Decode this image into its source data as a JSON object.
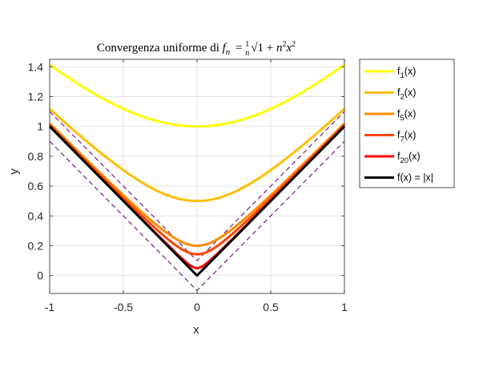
{
  "chart_data": {
    "type": "line",
    "title": "Convergenza uniforme di f_n = (1/n)√(1 + n²x²)",
    "title_parts": {
      "prefix": "Convergenza uniforme di ",
      "f": "f",
      "n_sub": "n",
      "equals": "=",
      "num": "1",
      "den": "n",
      "radicand_start": "1 + ",
      "n": "n",
      "exp2a": "2",
      "x": "x",
      "exp2b": "2"
    },
    "xlabel": "x",
    "ylabel": "y",
    "xlim": [
      -1,
      1
    ],
    "ylim": [
      -0.12,
      1.45
    ],
    "xticks": [
      -1,
      -0.5,
      0,
      0.5,
      1
    ],
    "xtick_labels": [
      "-1",
      "-0.5",
      "0",
      "0.5",
      "1"
    ],
    "yticks": [
      0,
      0.2,
      0.4,
      0.6,
      0.8,
      1,
      1.2,
      1.4
    ],
    "ytick_labels": [
      "0",
      "0.2",
      "0.4",
      "0.6",
      "0.8",
      "1",
      "1.2",
      "1.4"
    ],
    "grid": true,
    "legend_position": "outside-right-top",
    "series": [
      {
        "name": "f_1(x)",
        "label_main": "f",
        "label_sub": "1",
        "label_tail": "(x)",
        "n": 1,
        "color": "#ffff00"
      },
      {
        "name": "f_2(x)",
        "label_main": "f",
        "label_sub": "2",
        "label_tail": "(x)",
        "n": 2,
        "color": "#ffbf00"
      },
      {
        "name": "f_5(x)",
        "label_main": "f",
        "label_sub": "5",
        "label_tail": "(x)",
        "n": 5,
        "color": "#ff8c00"
      },
      {
        "name": "f_7(x)",
        "label_main": "f",
        "label_sub": "7",
        "label_tail": "(x)",
        "n": 7,
        "color": "#ff4500"
      },
      {
        "name": "f_20(x)",
        "label_main": "f",
        "label_sub": "20",
        "label_tail": "(x)",
        "n": 20,
        "color": "#ff0000"
      },
      {
        "name": "f(x) = |x|",
        "label_main": "f(x) = |x|",
        "label_sub": "",
        "label_tail": "",
        "n": 0,
        "color": "#000000"
      }
    ],
    "bounds": {
      "offset": 0.1,
      "color": "#7e2f8e",
      "style": "dashed"
    }
  }
}
